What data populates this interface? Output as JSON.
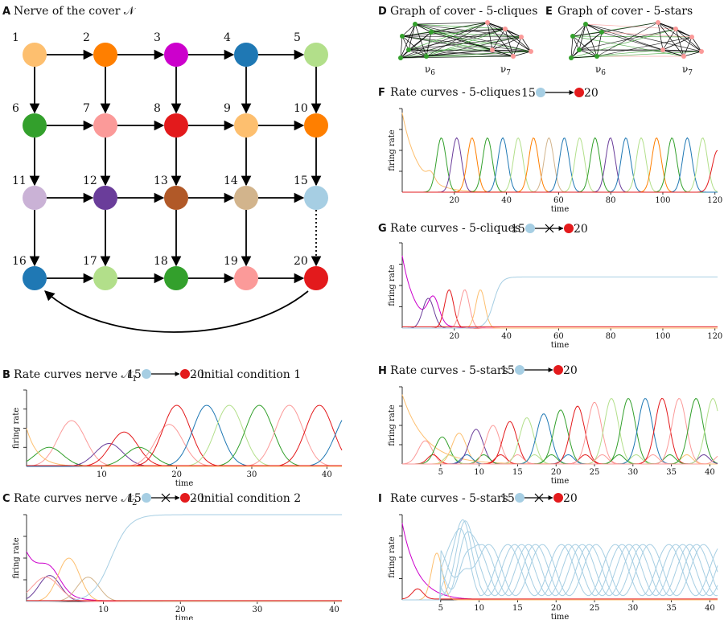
{
  "colors": {
    "orange_light": "#fdbf6f",
    "orange": "#ff7f00",
    "magenta": "#cc00cc",
    "blue": "#1f78b4",
    "green_light": "#b2df8a",
    "green": "#33a02c",
    "pink": "#fb9a99",
    "red": "#e31a1c",
    "lavender": "#cab2d6",
    "purple": "#6a3d9a",
    "brown": "#b15928",
    "tan": "#d2b48c",
    "light_blue": "#a6cee3"
  },
  "panelA": {
    "letter": "A",
    "title": "Nerve of the cover 𝒩",
    "nodes": [
      {
        "label": "1",
        "color": "orange_light"
      },
      {
        "label": "2",
        "color": "orange"
      },
      {
        "label": "3",
        "color": "magenta"
      },
      {
        "label": "4",
        "color": "blue"
      },
      {
        "label": "5",
        "color": "green_light"
      },
      {
        "label": "6",
        "color": "green"
      },
      {
        "label": "7",
        "color": "pink"
      },
      {
        "label": "8",
        "color": "red"
      },
      {
        "label": "9",
        "color": "orange_light"
      },
      {
        "label": "10",
        "color": "orange"
      },
      {
        "label": "11",
        "color": "lavender"
      },
      {
        "label": "12",
        "color": "purple"
      },
      {
        "label": "13",
        "color": "brown"
      },
      {
        "label": "14",
        "color": "tan"
      },
      {
        "label": "15",
        "color": "light_blue"
      },
      {
        "label": "16",
        "color": "blue"
      },
      {
        "label": "17",
        "color": "green_light"
      },
      {
        "label": "18",
        "color": "green"
      },
      {
        "label": "19",
        "color": "pink"
      },
      {
        "label": "20",
        "color": "red"
      }
    ]
  },
  "panelB": {
    "letter": "B",
    "title_pre": "Rate curves nerve 𝒩",
    "title_sub": "1",
    "title_post": "- initial condition 1",
    "from_label": "15",
    "to_label": "20",
    "blocked": false
  },
  "panelC": {
    "letter": "C",
    "title_pre": "Rate curves nerve 𝒩",
    "title_sub": "2",
    "title_post": "- initial condition 2",
    "from_label": "15",
    "to_label": "20",
    "blocked": true
  },
  "panelD": {
    "letter": "D",
    "title": "Graph of cover - 5-cliques",
    "label_left": "ν",
    "label_left_sub": "6",
    "label_right": "ν",
    "label_right_sub": "7"
  },
  "panelE": {
    "letter": "E",
    "title": "Graph of cover - 5-stars",
    "label_left": "ν",
    "label_left_sub": "6",
    "label_right": "ν",
    "label_right_sub": "7"
  },
  "panelF": {
    "letter": "F",
    "title": "Rate curves - 5-cliques",
    "from_label": "15",
    "to_label": "20",
    "blocked": false
  },
  "panelG": {
    "letter": "G",
    "title": "Rate curves - 5-cliques",
    "from_label": "15",
    "to_label": "20",
    "blocked": true
  },
  "panelH": {
    "letter": "H",
    "title": "Rate curves - 5-stars",
    "from_label": "15",
    "to_label": "20",
    "blocked": false
  },
  "panelI": {
    "letter": "I",
    "title": "Rate curves - 5-stars",
    "from_label": "15",
    "to_label": "20",
    "blocked": true
  },
  "chart_data": [
    {
      "panel": "B",
      "type": "line",
      "xlabel": "time",
      "ylabel": "firing rate",
      "xlim": [
        0,
        42
      ],
      "xticks": [
        10,
        20,
        30,
        40
      ],
      "ylim": [
        0,
        1
      ]
    },
    {
      "panel": "C",
      "type": "line",
      "xlabel": "time",
      "ylabel": "firing rate",
      "xlim": [
        0,
        41
      ],
      "xticks": [
        10,
        20,
        30,
        40
      ],
      "ylim": [
        0,
        1
      ]
    },
    {
      "panel": "F",
      "type": "line",
      "xlabel": "time",
      "ylabel": "firing rate",
      "xlim": [
        0,
        121
      ],
      "xticks": [
        20,
        40,
        60,
        80,
        100,
        120
      ],
      "ylim": [
        0,
        1
      ]
    },
    {
      "panel": "G",
      "type": "line",
      "xlabel": "time",
      "ylabel": "firing rate",
      "xlim": [
        0,
        121
      ],
      "xticks": [
        20,
        40,
        60,
        80,
        100,
        120
      ],
      "ylim": [
        0,
        1
      ]
    },
    {
      "panel": "H",
      "type": "line",
      "xlabel": "time",
      "ylabel": "firing rate",
      "xlim": [
        0,
        41
      ],
      "xticks": [
        5,
        10,
        15,
        20,
        25,
        30,
        35,
        40
      ],
      "ylim": [
        0,
        1
      ]
    },
    {
      "panel": "I",
      "type": "line",
      "xlabel": "time",
      "ylabel": "firing rate",
      "xlim": [
        0,
        41
      ],
      "xticks": [
        5,
        10,
        15,
        20,
        25,
        30,
        35,
        40
      ],
      "ylim": [
        0,
        1
      ]
    }
  ]
}
